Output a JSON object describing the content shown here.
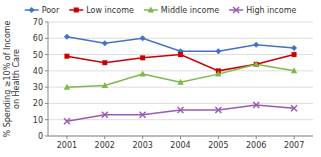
{
  "chart_data": {
    "type": "line",
    "x": [
      2001,
      2002,
      2003,
      2004,
      2005,
      2006,
      2007
    ],
    "series": [
      {
        "name": "Poor",
        "color": "#4472C4",
        "marker": "diamond",
        "values": [
          61,
          57,
          60,
          52,
          52,
          56,
          54
        ]
      },
      {
        "name": "Low income",
        "color": "#CC0000",
        "marker": "square",
        "values": [
          49,
          45,
          48,
          50,
          40,
          44,
          50
        ]
      },
      {
        "name": "Middle income",
        "color": "#7DB84A",
        "marker": "triangle",
        "values": [
          30,
          31,
          38,
          33,
          38,
          44,
          40
        ]
      },
      {
        "name": "High income",
        "color": "#9B59B6",
        "marker": "x",
        "values": [
          9,
          13,
          13,
          16,
          16,
          19,
          17
        ]
      }
    ],
    "ylabel": "% Spending ≥10% of Income\non Health Care",
    "xlim": [
      2000.5,
      2007.5
    ],
    "xticks": [
      2001,
      2002,
      2003,
      2004,
      2005,
      2006,
      2007
    ],
    "ylim": [
      0,
      70
    ],
    "yticks": [
      0,
      10,
      20,
      30,
      40,
      50,
      60,
      70
    ],
    "grid": true,
    "legend": "top"
  }
}
